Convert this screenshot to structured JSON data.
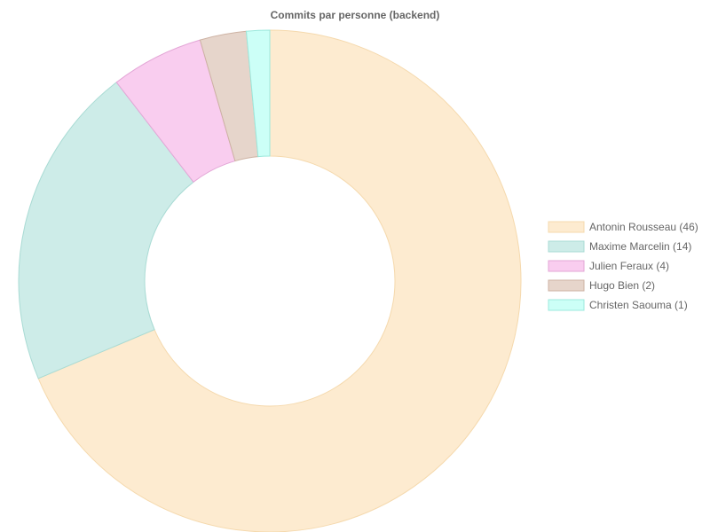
{
  "chart_data": {
    "type": "pie",
    "variant": "doughnut",
    "title": "Commits par personne (backend)",
    "legend_position": "right",
    "slices": [
      {
        "label": "Antonin Rousseau (46)",
        "value": 46,
        "color": "#fdebd0",
        "border": "#f5d9ad"
      },
      {
        "label": "Maxime Marcelin (14)",
        "value": 14,
        "color": "#cdece8",
        "border": "#a9dbd4"
      },
      {
        "label": "Julien Feraux (4)",
        "value": 4,
        "color": "#f9cdef",
        "border": "#e3a6d6"
      },
      {
        "label": "Hugo Bien (2)",
        "value": 2,
        "color": "#e6d5cb",
        "border": "#cdb2a3"
      },
      {
        "label": "Christen Saouma (1)",
        "value": 1,
        "color": "#ccfff7",
        "border": "#9be8dc"
      }
    ]
  }
}
